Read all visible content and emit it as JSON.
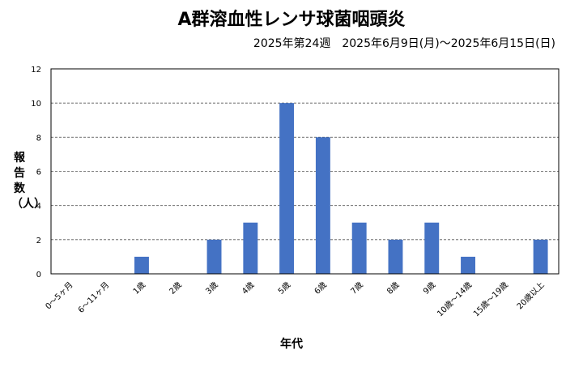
{
  "chart_data": {
    "type": "bar",
    "title": "A群溶血性レンサ球菌咽頭炎",
    "subtitle": "2025年第24週　2025年6月9日(月)～2025年6月15日(日)",
    "xlabel": "年代",
    "ylabel": "報告数（人）",
    "categories": [
      "0～5ヶ月",
      "6～11ヶ月",
      "1歳",
      "2歳",
      "3歳",
      "4歳",
      "5歳",
      "6歳",
      "7歳",
      "8歳",
      "9歳",
      "10歳～14歳",
      "15歳～19歳",
      "20歳以上"
    ],
    "values": [
      0,
      0,
      1,
      0,
      2,
      3,
      10,
      8,
      3,
      2,
      3,
      1,
      0,
      2
    ],
    "ylim": [
      0,
      12
    ],
    "yticks": [
      0,
      2,
      4,
      6,
      8,
      10,
      12
    ],
    "grid": true,
    "bar_color": "#4472C4"
  }
}
